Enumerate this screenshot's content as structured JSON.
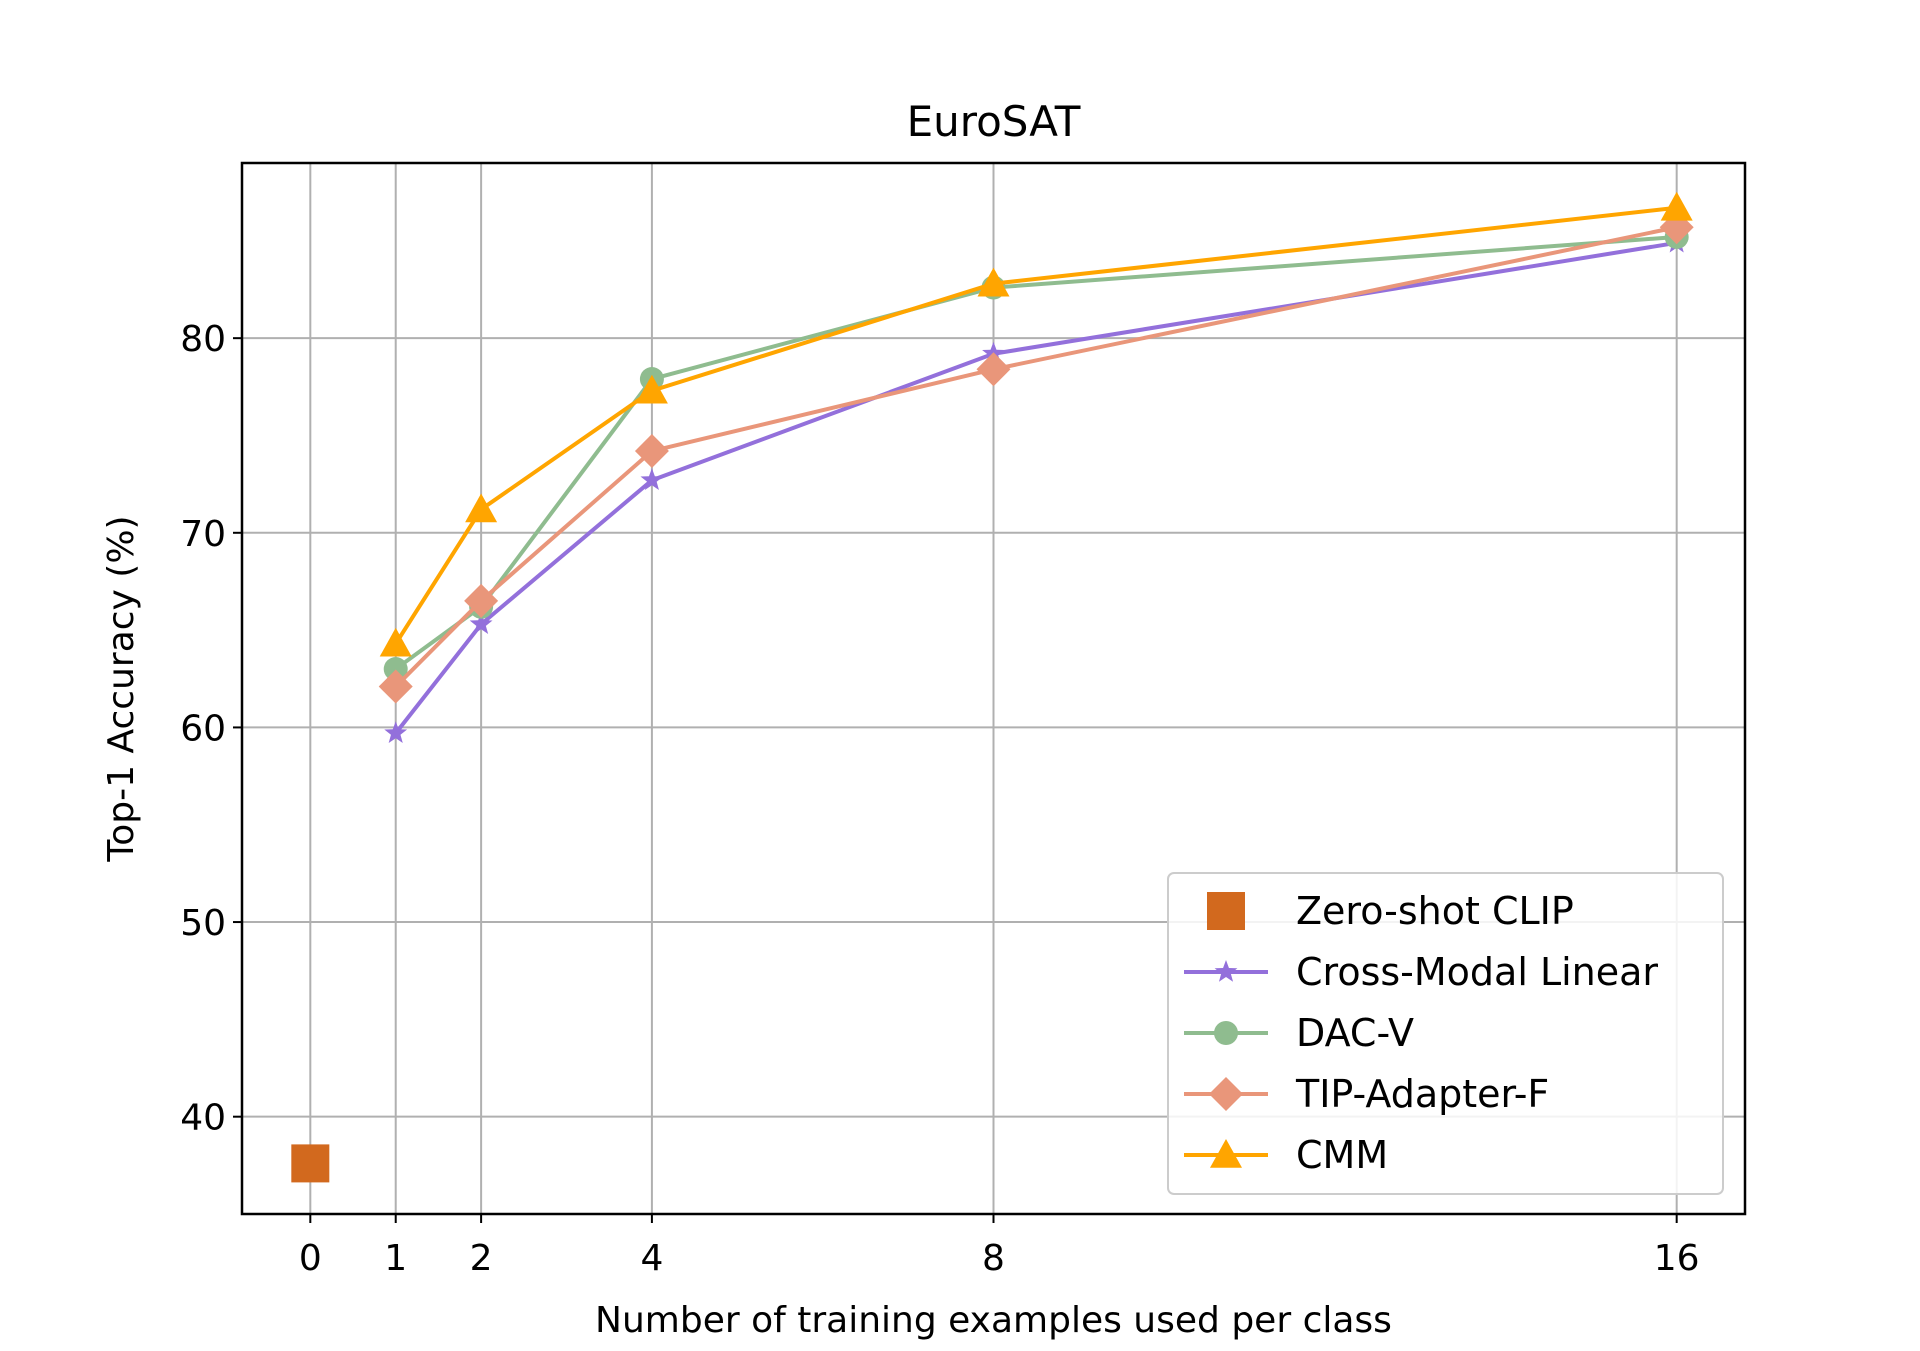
{
  "chart_data": {
    "type": "line",
    "title": "EuroSAT",
    "xlabel": "Number of training examples used per class",
    "ylabel": "Top-1 Accuracy (%)",
    "xlim": [
      -0.8,
      16.8
    ],
    "ylim": [
      35,
      89
    ],
    "xticks": [
      0,
      1,
      2,
      4,
      8,
      16
    ],
    "yticks": [
      40,
      50,
      60,
      70,
      80
    ],
    "grid": true,
    "legend_position": "lower-right",
    "series": [
      {
        "name": "Zero-shot CLIP",
        "color": "#d2691e",
        "marker": "square",
        "line": false,
        "x": [
          0
        ],
        "values": [
          37.6
        ]
      },
      {
        "name": "Cross-Modal Linear",
        "color": "#9370db",
        "marker": "star",
        "line": true,
        "x": [
          1,
          2,
          4,
          8,
          16
        ],
        "values": [
          59.7,
          65.3,
          72.7,
          79.2,
          84.9
        ]
      },
      {
        "name": "DAC-V",
        "color": "#8fbc8f",
        "marker": "circle",
        "line": true,
        "x": [
          1,
          2,
          4,
          8,
          16
        ],
        "values": [
          63.0,
          66.2,
          77.9,
          82.6,
          85.2
        ]
      },
      {
        "name": "TIP-Adapter-F",
        "color": "#e9967a",
        "marker": "diamond",
        "line": true,
        "x": [
          1,
          2,
          4,
          8,
          16
        ],
        "values": [
          62.1,
          66.5,
          74.2,
          78.4,
          85.7
        ]
      },
      {
        "name": "CMM",
        "color": "#ffa500",
        "marker": "triangle",
        "line": true,
        "x": [
          1,
          2,
          4,
          8,
          16
        ],
        "values": [
          64.3,
          71.2,
          77.3,
          82.8,
          86.7
        ]
      }
    ]
  }
}
